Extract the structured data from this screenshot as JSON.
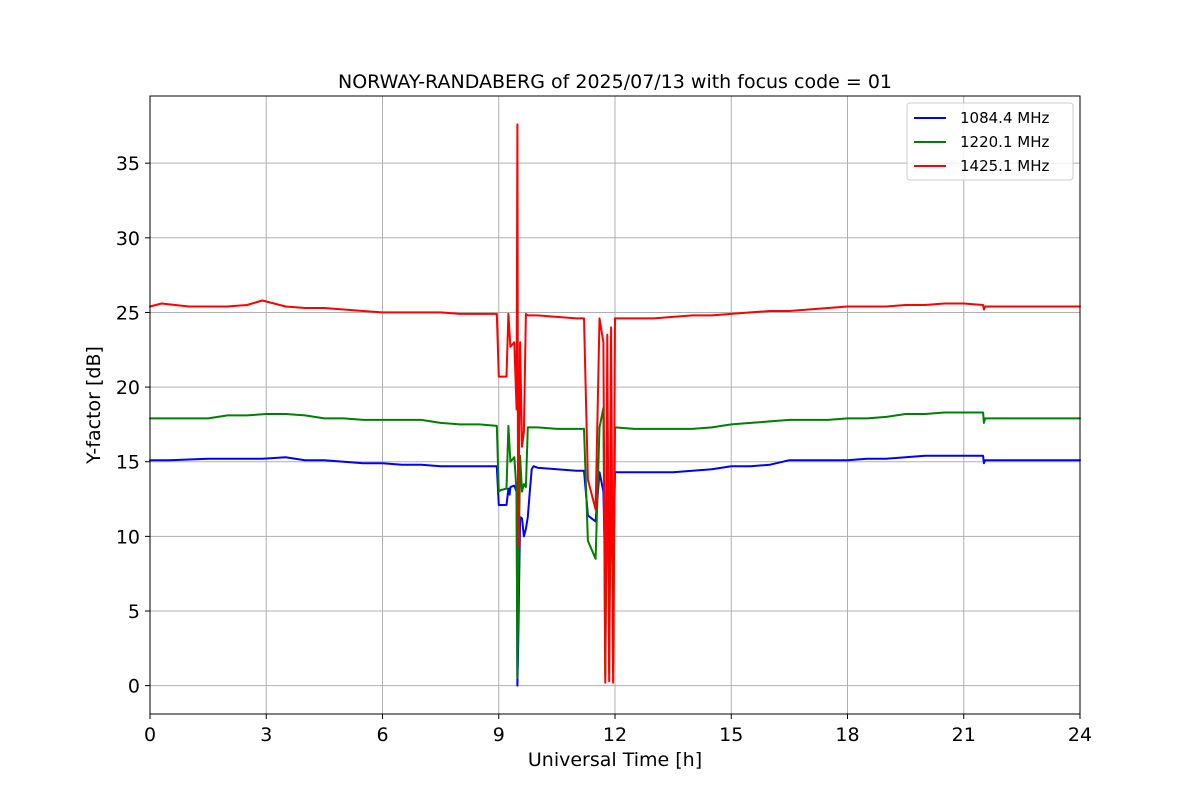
{
  "chart_data": {
    "type": "line",
    "title": "NORWAY-RANDABERG of 2025/07/13 with focus code = 01",
    "xlabel": "Universal Time [h]",
    "ylabel": "Y-factor [dB]",
    "xlim": [
      0,
      24
    ],
    "ylim": [
      -1.9,
      39.5
    ],
    "xticks": [
      0,
      3,
      6,
      9,
      12,
      15,
      18,
      21,
      24
    ],
    "xtick_labels": [
      "0",
      "3",
      "6",
      "9",
      "12",
      "15",
      "18",
      "21",
      "24"
    ],
    "yticks": [
      0,
      5,
      10,
      15,
      20,
      25,
      30,
      35
    ],
    "ytick_labels": [
      "0",
      "5",
      "10",
      "15",
      "20",
      "25",
      "30",
      "35"
    ],
    "grid": true,
    "legend_position": "top-right",
    "series": [
      {
        "name": "1084.4 MHz",
        "color": "#0000ff",
        "x": [
          0,
          0.5,
          1.5,
          2.3,
          2.9,
          3.5,
          4.0,
          4.5,
          5.0,
          5.5,
          6.0,
          6.5,
          7.0,
          7.5,
          8.0,
          8.5,
          8.95,
          9.0,
          9.05,
          9.2,
          9.25,
          9.28,
          9.3,
          9.4,
          9.46,
          9.48,
          9.5,
          9.55,
          9.6,
          9.65,
          9.7,
          9.75,
          9.8,
          9.85,
          9.9,
          10.0,
          10.5,
          11.0,
          11.2,
          11.3,
          11.5,
          11.6,
          11.7,
          11.75,
          11.8,
          11.85,
          11.9,
          11.95,
          12.0,
          12.5,
          13.0,
          13.5,
          14.0,
          14.5,
          15.0,
          15.5,
          16.0,
          16.5,
          17.0,
          17.5,
          18.0,
          18.5,
          19.0,
          19.5,
          20.0,
          20.5,
          21.0,
          21.5,
          21.52,
          21.55,
          22.0,
          23.0,
          24.0
        ],
        "y": [
          15.1,
          15.1,
          15.2,
          15.2,
          15.2,
          15.3,
          15.1,
          15.1,
          15.0,
          14.9,
          14.9,
          14.8,
          14.8,
          14.7,
          14.7,
          14.7,
          14.7,
          12.1,
          12.1,
          12.1,
          13.2,
          12.8,
          13.3,
          13.4,
          13.0,
          0.0,
          2.3,
          11.3,
          11.2,
          10.0,
          10.5,
          11.3,
          13.0,
          14.5,
          14.7,
          14.6,
          14.5,
          14.4,
          14.4,
          11.4,
          11.0,
          14.3,
          13.0,
          7.5,
          14.5,
          7.2,
          12.0,
          7.0,
          14.3,
          14.3,
          14.3,
          14.3,
          14.4,
          14.5,
          14.7,
          14.7,
          14.8,
          15.1,
          15.1,
          15.1,
          15.1,
          15.2,
          15.2,
          15.3,
          15.4,
          15.4,
          15.4,
          15.4,
          14.9,
          15.1,
          15.1,
          15.1,
          15.1
        ]
      },
      {
        "name": "1220.1 MHz",
        "color": "#008000",
        "x": [
          0,
          0.5,
          1.5,
          2.0,
          2.5,
          3.0,
          3.5,
          4.0,
          4.5,
          5.0,
          5.5,
          6.0,
          6.5,
          7.0,
          7.5,
          8.0,
          8.5,
          8.95,
          9.0,
          9.05,
          9.2,
          9.25,
          9.3,
          9.4,
          9.46,
          9.48,
          9.5,
          9.55,
          9.6,
          9.65,
          9.7,
          9.75,
          9.8,
          10.0,
          10.5,
          11.0,
          11.2,
          11.3,
          11.5,
          11.6,
          11.7,
          11.75,
          11.8,
          11.85,
          11.9,
          11.95,
          12.0,
          12.5,
          13.0,
          13.5,
          14.0,
          14.5,
          15.0,
          15.5,
          16.0,
          16.5,
          17.0,
          17.5,
          18.0,
          18.5,
          19.0,
          19.5,
          20.0,
          20.5,
          21.0,
          21.5,
          21.52,
          21.55,
          22.0,
          23.0,
          24.0
        ],
        "y": [
          17.9,
          17.9,
          17.9,
          18.1,
          18.1,
          18.2,
          18.2,
          18.1,
          17.9,
          17.9,
          17.8,
          17.8,
          17.8,
          17.8,
          17.6,
          17.5,
          17.5,
          17.4,
          13.0,
          13.1,
          13.2,
          17.4,
          15.0,
          15.3,
          13.0,
          0.5,
          5.0,
          15.4,
          13.0,
          13.5,
          13.3,
          17.3,
          17.3,
          17.3,
          17.2,
          17.2,
          17.2,
          9.7,
          8.5,
          17.3,
          18.6,
          0.6,
          17.0,
          0.8,
          17.3,
          0.9,
          17.3,
          17.2,
          17.2,
          17.2,
          17.2,
          17.3,
          17.5,
          17.6,
          17.7,
          17.8,
          17.8,
          17.8,
          17.9,
          17.9,
          18.0,
          18.2,
          18.2,
          18.3,
          18.3,
          18.3,
          17.6,
          17.9,
          17.9,
          17.9,
          17.9
        ]
      },
      {
        "name": "1425.1 MHz",
        "color": "#ff0000",
        "x": [
          0,
          0.3,
          1.0,
          2.0,
          2.5,
          2.9,
          3.5,
          4.0,
          4.5,
          5.0,
          5.5,
          6.0,
          6.5,
          7.0,
          7.5,
          8.0,
          8.5,
          8.95,
          9.0,
          9.05,
          9.2,
          9.25,
          9.3,
          9.4,
          9.46,
          9.48,
          9.5,
          9.55,
          9.6,
          9.65,
          9.7,
          9.75,
          9.8,
          10.0,
          10.5,
          11.0,
          11.2,
          11.3,
          11.5,
          11.6,
          11.7,
          11.75,
          11.8,
          11.85,
          11.9,
          11.95,
          12.0,
          12.5,
          13.0,
          13.5,
          14.0,
          14.5,
          15.0,
          15.5,
          16.0,
          16.5,
          17.0,
          17.5,
          18.0,
          18.5,
          19.0,
          19.5,
          20.0,
          20.5,
          21.0,
          21.5,
          21.52,
          21.55,
          22.0,
          23.0,
          24.0
        ],
        "y": [
          25.4,
          25.6,
          25.4,
          25.4,
          25.5,
          25.8,
          25.4,
          25.3,
          25.3,
          25.2,
          25.1,
          25.0,
          25.0,
          25.0,
          25.0,
          24.9,
          24.9,
          24.9,
          20.7,
          20.7,
          20.7,
          24.9,
          22.7,
          23.0,
          18.5,
          37.6,
          9.3,
          23.0,
          16.0,
          17.0,
          24.9,
          24.8,
          24.8,
          24.8,
          24.7,
          24.6,
          24.6,
          13.8,
          11.8,
          24.6,
          23.0,
          0.2,
          23.5,
          0.3,
          24.0,
          0.2,
          24.6,
          24.6,
          24.6,
          24.7,
          24.8,
          24.8,
          24.9,
          25.0,
          25.1,
          25.1,
          25.2,
          25.3,
          25.4,
          25.4,
          25.4,
          25.5,
          25.5,
          25.6,
          25.6,
          25.5,
          25.2,
          25.4,
          25.4,
          25.4,
          25.4
        ]
      }
    ]
  }
}
